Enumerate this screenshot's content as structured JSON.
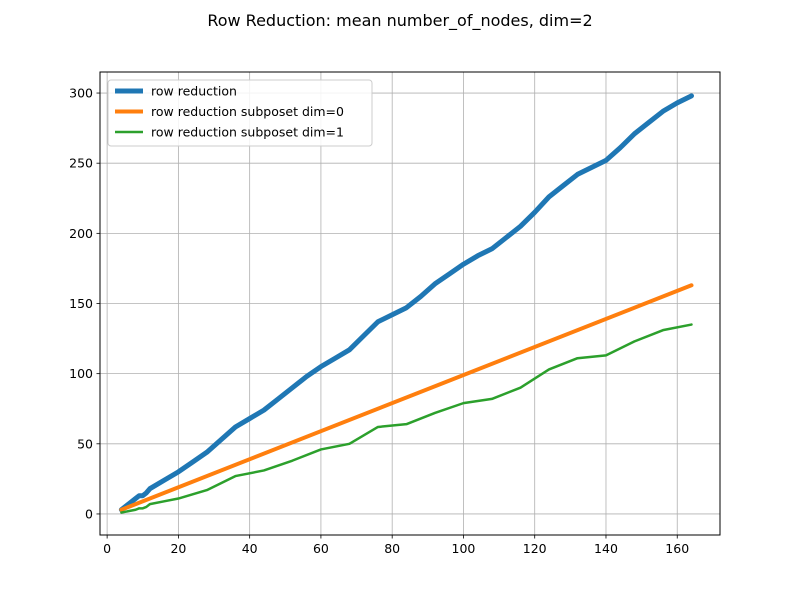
{
  "chart_data": {
    "type": "line",
    "title": "Row Reduction: mean number_of_nodes, dim=2",
    "xlabel": "",
    "ylabel": "",
    "xlim": [
      -2,
      172
    ],
    "ylim": [
      -15,
      315
    ],
    "xticks": [
      0,
      20,
      40,
      60,
      80,
      100,
      120,
      140,
      160
    ],
    "yticks": [
      0,
      50,
      100,
      150,
      200,
      250,
      300
    ],
    "grid": true,
    "legend": "top-left",
    "series": [
      {
        "name": "row reduction",
        "color": "#1f77b4",
        "width": 5,
        "x": [
          4,
          6,
          8,
          9,
          10,
          11,
          12,
          16,
          20,
          24,
          28,
          32,
          36,
          40,
          44,
          48,
          52,
          56,
          60,
          64,
          68,
          72,
          76,
          80,
          84,
          88,
          92,
          96,
          100,
          104,
          108,
          112,
          116,
          120,
          124,
          128,
          132,
          136,
          140,
          144,
          148,
          152,
          156,
          160,
          164
        ],
        "y": [
          3,
          7,
          11,
          13,
          13,
          15,
          18,
          24,
          30,
          37,
          44,
          53,
          62,
          68,
          74,
          82,
          90,
          98,
          105,
          111,
          117,
          127,
          137,
          142,
          147,
          155,
          164,
          171,
          178,
          184,
          189,
          197,
          205,
          215,
          226,
          234,
          242,
          247,
          252,
          261,
          271,
          279,
          287,
          293,
          298
        ]
      },
      {
        "name": "row reduction subposet dim=0",
        "color": "#ff7f0e",
        "width": 4,
        "x": [
          4,
          164
        ],
        "y": [
          3,
          163
        ]
      },
      {
        "name": "row reduction subposet dim=1",
        "color": "#2ca02c",
        "width": 2.5,
        "x": [
          4,
          6,
          8,
          9,
          10,
          11,
          12,
          16,
          20,
          24,
          28,
          32,
          36,
          44,
          52,
          60,
          68,
          76,
          84,
          92,
          100,
          108,
          116,
          124,
          132,
          140,
          148,
          156,
          164
        ],
        "y": [
          1,
          2,
          3,
          4,
          4,
          5,
          7,
          9,
          11,
          14,
          17,
          22,
          27,
          31,
          38,
          46,
          50,
          62,
          64,
          72,
          79,
          82,
          90,
          103,
          111,
          113,
          123,
          131,
          135
        ]
      }
    ]
  }
}
